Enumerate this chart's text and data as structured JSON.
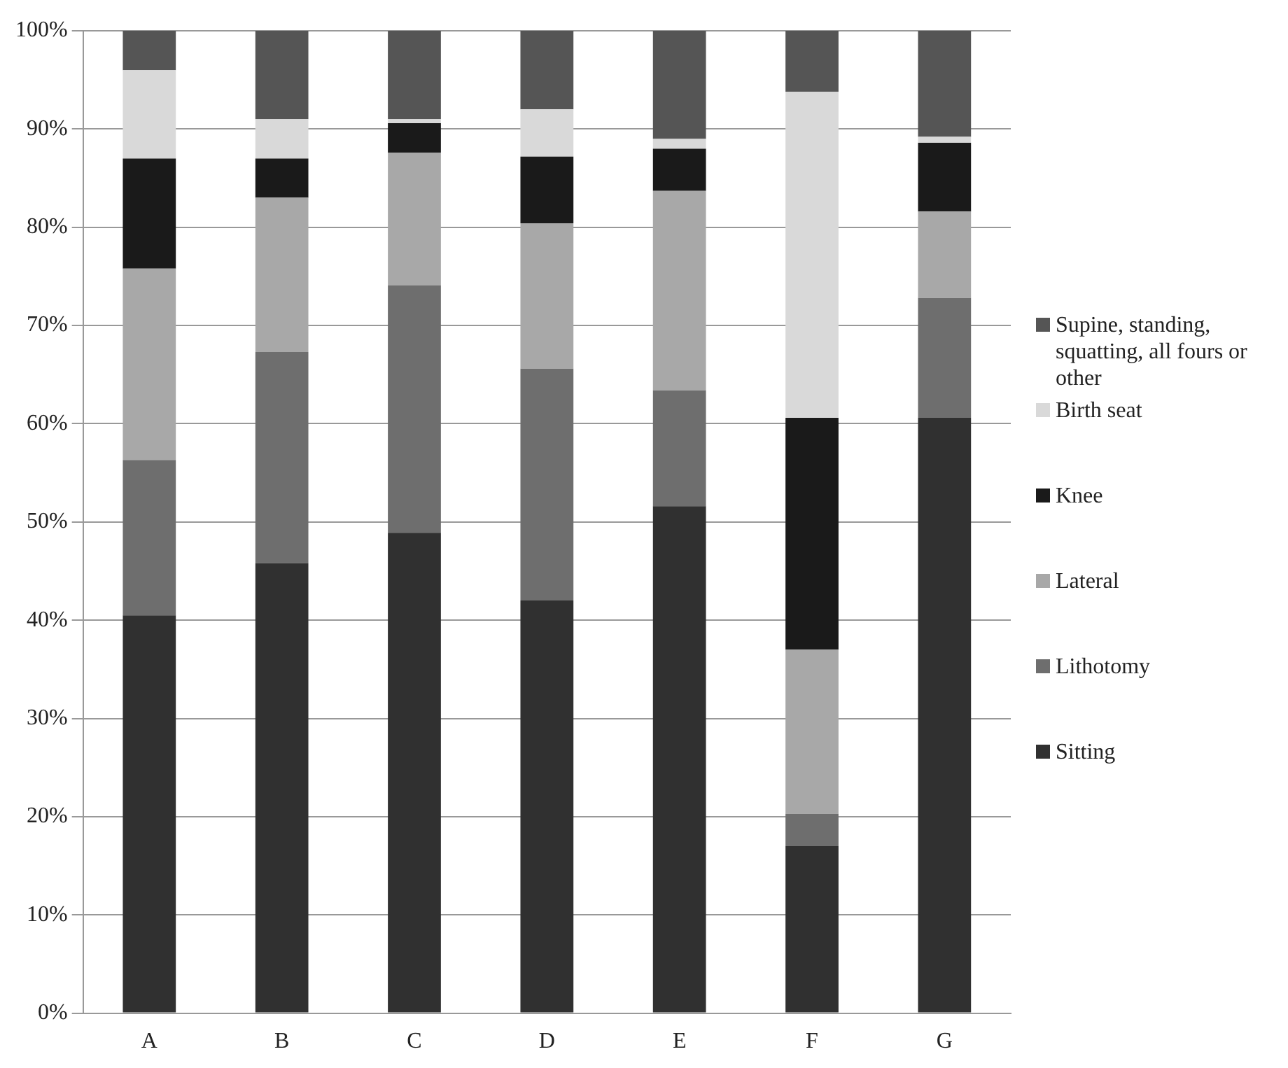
{
  "chart_data": {
    "type": "bar",
    "stacked": true,
    "categories": [
      "A",
      "B",
      "C",
      "D",
      "E",
      "F",
      "G"
    ],
    "series": [
      {
        "name": "Sitting",
        "color": "#303030",
        "values": [
          40.5,
          45.8,
          48.9,
          42.0,
          51.6,
          17.0,
          60.6
        ]
      },
      {
        "name": "Lithotomy",
        "color": "#6e6e6e",
        "values": [
          15.8,
          21.5,
          25.2,
          23.6,
          11.8,
          3.3,
          12.2
        ]
      },
      {
        "name": "Lateral",
        "color": "#a8a8a8",
        "values": [
          19.5,
          15.7,
          13.5,
          14.8,
          20.3,
          16.7,
          8.8
        ]
      },
      {
        "name": "Knee",
        "color": "#1a1a1a",
        "values": [
          11.2,
          4.0,
          3.0,
          6.8,
          4.3,
          23.6,
          7.0
        ]
      },
      {
        "name": "Birth seat",
        "color": "#d9d9d9",
        "values": [
          9.0,
          4.0,
          0.4,
          4.8,
          1.0,
          33.2,
          0.6
        ]
      },
      {
        "name": "Supine, standing, squatting, all fours or other",
        "color": "#555555",
        "values": [
          4.0,
          9.0,
          9.0,
          8.0,
          11.0,
          6.2,
          10.8
        ]
      }
    ],
    "ylim": [
      0,
      100
    ],
    "yticks": [
      {
        "value": 0,
        "label": "0%"
      },
      {
        "value": 10,
        "label": "10%"
      },
      {
        "value": 20,
        "label": "20%"
      },
      {
        "value": 30,
        "label": "30%"
      },
      {
        "value": 40,
        "label": "40%"
      },
      {
        "value": 50,
        "label": "50%"
      },
      {
        "value": 60,
        "label": "60%"
      },
      {
        "value": 70,
        "label": "70%"
      },
      {
        "value": 80,
        "label": "80%"
      },
      {
        "value": 90,
        "label": "90%"
      },
      {
        "value": 100,
        "label": "100%"
      }
    ],
    "grid": "y",
    "legend": "right"
  }
}
